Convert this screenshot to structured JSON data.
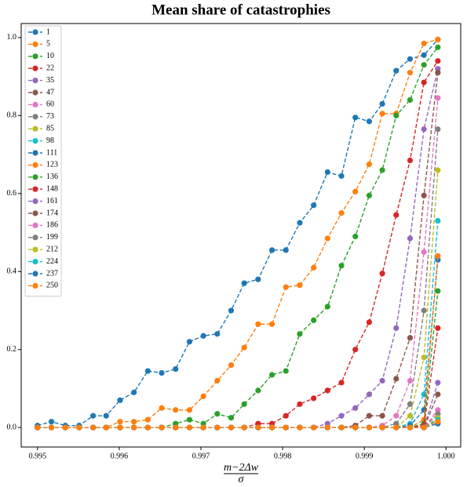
{
  "chart_data": {
    "type": "line",
    "title": "Mean share of catastrophies",
    "xlabel": {
      "numerator": "m−2Δw",
      "denominator": "σ"
    },
    "x": [
      0.995,
      0.99517,
      0.99534,
      0.99551,
      0.99568,
      0.99584,
      0.99601,
      0.99618,
      0.99635,
      0.99652,
      0.99669,
      0.99686,
      0.99703,
      0.9972,
      0.99737,
      0.99753,
      0.9977,
      0.99787,
      0.99804,
      0.99821,
      0.99838,
      0.99855,
      0.99872,
      0.99889,
      0.99906,
      0.99922,
      0.99939,
      0.99956,
      0.99973,
      0.9999
    ],
    "xlim": [
      0.9948,
      1.00018
    ],
    "xticks": [
      0.995,
      0.996,
      0.997,
      0.998,
      0.999,
      {
        "value": 1.0,
        "label": "1.000"
      }
    ],
    "ylim": [
      -0.05,
      1.036
    ],
    "yticks": [
      {
        "value": 0,
        "label": "0.0"
      },
      0.2,
      0.4,
      0.6,
      0.8,
      {
        "value": 1.0,
        "label": "1.0"
      }
    ],
    "legend": "upper left",
    "series": [
      {
        "name": "1",
        "color": "#1f77b4",
        "values": [
          0.005,
          0.015,
          0.005,
          0.005,
          0.03,
          0.03,
          0.07,
          0.09,
          0.145,
          0.14,
          0.15,
          0.22,
          0.235,
          0.24,
          0.3,
          0.37,
          0.38,
          0.455,
          0.455,
          0.525,
          0.57,
          0.655,
          0.645,
          0.795,
          0.785,
          0.83,
          0.915,
          0.945,
          0.955,
          0.995
        ]
      },
      {
        "name": "5",
        "color": "#ff7f0e",
        "values": [
          0,
          0,
          0,
          0,
          0,
          0,
          0.015,
          0.015,
          0.02,
          0.05,
          0.045,
          0.045,
          0.08,
          0.12,
          0.16,
          0.205,
          0.265,
          0.265,
          0.36,
          0.365,
          0.41,
          0.485,
          0.55,
          0.605,
          0.675,
          0.805,
          0.805,
          0.91,
          0.985,
          0.995
        ]
      },
      {
        "name": "10",
        "color": "#2ca02c",
        "values": [
          0,
          0,
          0,
          0,
          0,
          0,
          0,
          0,
          0,
          0,
          0.01,
          0.02,
          0.01,
          0.035,
          0.025,
          0.06,
          0.095,
          0.135,
          0.145,
          0.24,
          0.275,
          0.31,
          0.415,
          0.49,
          0.595,
          0.66,
          0.8,
          0.84,
          0.93,
          0.975
        ]
      },
      {
        "name": "22",
        "color": "#d62728",
        "values": [
          0,
          0,
          0,
          0,
          0,
          0,
          0,
          0,
          0,
          0,
          0,
          0,
          0,
          0,
          0,
          0,
          0.01,
          0.01,
          0.03,
          0.06,
          0.075,
          0.095,
          0.115,
          0.2,
          0.27,
          0.395,
          0.545,
          0.685,
          0.885,
          0.94
        ]
      },
      {
        "name": "35",
        "color": "#9467bd",
        "values": [
          0,
          0,
          0,
          0,
          0,
          0,
          0,
          0,
          0,
          0,
          0,
          0,
          0,
          0,
          0,
          0,
          0,
          0,
          0,
          0,
          0,
          0.01,
          0.03,
          0.05,
          0.085,
          0.12,
          0.255,
          0.485,
          0.765,
          0.92
        ]
      },
      {
        "name": "47",
        "color": "#8c564b",
        "values": [
          0,
          0,
          0,
          0,
          0,
          0,
          0,
          0,
          0,
          0,
          0,
          0,
          0,
          0,
          0,
          0,
          0,
          0,
          0,
          0,
          0,
          0,
          0,
          0.005,
          0.03,
          0.03,
          0.125,
          0.23,
          0.595,
          0.91
        ]
      },
      {
        "name": "60",
        "color": "#e377c2",
        "values": [
          0,
          0,
          0,
          0,
          0,
          0,
          0,
          0,
          0,
          0,
          0,
          0,
          0,
          0,
          0,
          0,
          0,
          0,
          0,
          0,
          0,
          0,
          0,
          0,
          0,
          0.005,
          0.03,
          0.12,
          0.45,
          0.845
        ]
      },
      {
        "name": "73",
        "color": "#7f7f7f",
        "values": [
          0,
          0,
          0,
          0,
          0,
          0,
          0,
          0,
          0,
          0,
          0,
          0,
          0,
          0,
          0,
          0,
          0,
          0,
          0,
          0,
          0,
          0,
          0,
          0,
          0,
          0,
          0.01,
          0.06,
          0.3,
          0.765
        ]
      },
      {
        "name": "85",
        "color": "#bcbd22",
        "values": [
          0,
          0,
          0,
          0,
          0,
          0,
          0,
          0,
          0,
          0,
          0,
          0,
          0,
          0,
          0,
          0,
          0,
          0,
          0,
          0,
          0,
          0,
          0,
          0,
          0,
          0,
          0,
          0.03,
          0.18,
          0.66
        ]
      },
      {
        "name": "98",
        "color": "#17becf",
        "values": [
          0,
          0,
          0,
          0,
          0,
          0,
          0,
          0,
          0,
          0,
          0,
          0,
          0,
          0,
          0,
          0,
          0,
          0,
          0,
          0,
          0,
          0,
          0,
          0,
          0,
          0,
          0,
          0.01,
          0.085,
          0.53
        ]
      },
      {
        "name": "111",
        "color": "#1f77b4",
        "values": [
          0,
          0,
          0,
          0,
          0,
          0,
          0,
          0,
          0,
          0,
          0,
          0,
          0,
          0,
          0,
          0,
          0,
          0,
          0,
          0,
          0,
          0,
          0,
          0,
          0,
          0,
          0,
          0.005,
          0.045,
          0.43
        ]
      },
      {
        "name": "123",
        "color": "#ff7f0e",
        "values": [
          0,
          0,
          0,
          0,
          0,
          0,
          0,
          0,
          0,
          0,
          0,
          0,
          0,
          0,
          0,
          0,
          0,
          0,
          0,
          0,
          0,
          0,
          0,
          0,
          0,
          0,
          0,
          0,
          0.02,
          0.44
        ]
      },
      {
        "name": "136",
        "color": "#2ca02c",
        "values": [
          0,
          0,
          0,
          0,
          0,
          0,
          0,
          0,
          0,
          0,
          0,
          0,
          0,
          0,
          0,
          0,
          0,
          0,
          0,
          0,
          0,
          0,
          0,
          0,
          0,
          0,
          0,
          0,
          0.01,
          0.35
        ]
      },
      {
        "name": "148",
        "color": "#d62728",
        "values": [
          0,
          0,
          0,
          0,
          0,
          0,
          0,
          0,
          0,
          0,
          0,
          0,
          0,
          0,
          0,
          0,
          0,
          0,
          0,
          0,
          0,
          0,
          0,
          0,
          0,
          0,
          0,
          0,
          0.005,
          0.255
        ]
      },
      {
        "name": "161",
        "color": "#9467bd",
        "values": [
          0,
          0,
          0,
          0,
          0,
          0,
          0,
          0,
          0,
          0,
          0,
          0,
          0,
          0,
          0,
          0,
          0,
          0,
          0,
          0,
          0,
          0,
          0,
          0,
          0,
          0,
          0,
          0,
          0,
          0.115
        ]
      },
      {
        "name": "174",
        "color": "#8c564b",
        "values": [
          0,
          0,
          0,
          0,
          0,
          0,
          0,
          0,
          0,
          0,
          0,
          0,
          0,
          0,
          0,
          0,
          0,
          0,
          0,
          0,
          0,
          0,
          0,
          0,
          0,
          0,
          0,
          0,
          0,
          0.085
        ]
      },
      {
        "name": "186",
        "color": "#e377c2",
        "values": [
          0,
          0,
          0,
          0,
          0,
          0,
          0,
          0,
          0,
          0,
          0,
          0,
          0,
          0,
          0,
          0,
          0,
          0,
          0,
          0,
          0,
          0,
          0,
          0,
          0,
          0,
          0,
          0,
          0,
          0.045
        ]
      },
      {
        "name": "199",
        "color": "#7f7f7f",
        "values": [
          0,
          0,
          0,
          0,
          0,
          0,
          0,
          0,
          0,
          0,
          0,
          0,
          0,
          0,
          0,
          0,
          0,
          0,
          0,
          0,
          0,
          0,
          0,
          0,
          0,
          0,
          0,
          0,
          0,
          0.035
        ]
      },
      {
        "name": "212",
        "color": "#bcbd22",
        "values": [
          0,
          0,
          0,
          0,
          0,
          0,
          0,
          0,
          0,
          0,
          0,
          0,
          0,
          0,
          0,
          0,
          0,
          0,
          0,
          0,
          0,
          0,
          0,
          0,
          0,
          0,
          0,
          0,
          0,
          0.025
        ]
      },
      {
        "name": "224",
        "color": "#17becf",
        "values": [
          0,
          0,
          0,
          0,
          0,
          0,
          0,
          0,
          0,
          0,
          0,
          0,
          0,
          0,
          0,
          0,
          0,
          0,
          0,
          0,
          0,
          0,
          0,
          0,
          0,
          0,
          0,
          0,
          0,
          0.02
        ]
      },
      {
        "name": "237",
        "color": "#1f77b4",
        "values": [
          0,
          0,
          0,
          0,
          0,
          0,
          0,
          0,
          0,
          0,
          0,
          0,
          0,
          0,
          0,
          0,
          0,
          0,
          0,
          0,
          0,
          0,
          0,
          0,
          0,
          0,
          0,
          0,
          0,
          0.01
        ]
      },
      {
        "name": "250",
        "color": "#ff7f0e",
        "values": [
          0,
          0,
          0,
          0,
          0,
          0,
          0,
          0,
          0,
          0,
          0,
          0,
          0,
          0,
          0,
          0,
          0,
          0,
          0,
          0,
          0,
          0,
          0,
          0,
          0,
          0,
          0,
          0,
          0,
          0.015
        ]
      }
    ]
  }
}
